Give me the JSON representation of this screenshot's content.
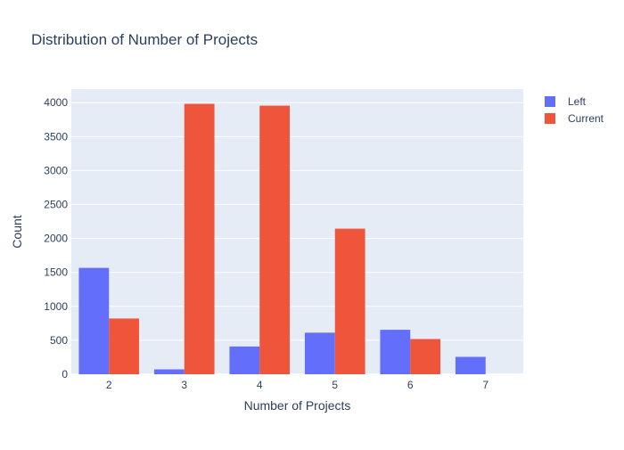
{
  "chart_data": {
    "type": "bar",
    "title": "Distribution of Number of Projects",
    "xlabel": "Number of Projects",
    "ylabel": "Count",
    "categories": [
      "2",
      "3",
      "4",
      "5",
      "6",
      "7"
    ],
    "series": [
      {
        "name": "Left",
        "color": "#636efa",
        "values": [
          1567,
          72,
          409,
          612,
          655,
          256
        ]
      },
      {
        "name": "Current",
        "color": "#ef553b",
        "values": [
          821,
          3983,
          3956,
          2145,
          519,
          0
        ]
      }
    ],
    "ylim": [
      0,
      4200
    ],
    "yticks": [
      0,
      500,
      1000,
      1500,
      2000,
      2500,
      3000,
      3500,
      4000
    ],
    "grid": true,
    "legend_position": "top-right",
    "plot_background": "#e5ecf6"
  }
}
